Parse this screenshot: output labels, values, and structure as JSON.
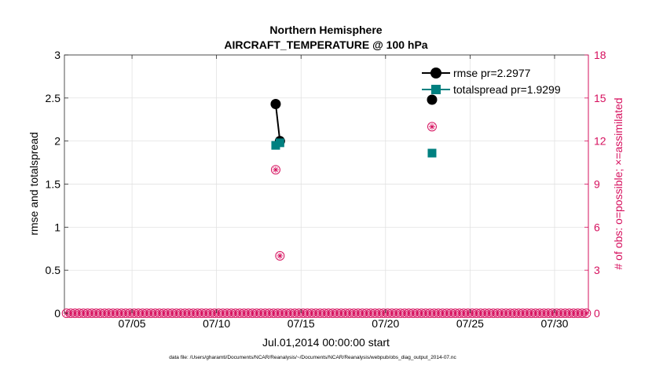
{
  "chart_data": {
    "type": "line",
    "title": "Northern Hemisphere",
    "subtitle": "AIRCRAFT_TEMPERATURE @ 100 hPa",
    "xlabel": "Jul.01,2014 00:00:00 start",
    "ylabel": "rmse and totalspread",
    "y2label": "# of obs: o=possible; ×=assimilated",
    "xlim": [
      1.0,
      32.0
    ],
    "ylim": [
      0,
      3
    ],
    "y2lim": [
      0,
      18
    ],
    "xticks": [
      {
        "value": 5,
        "label": "07/05"
      },
      {
        "value": 10,
        "label": "07/10"
      },
      {
        "value": 15,
        "label": "07/15"
      },
      {
        "value": 20,
        "label": "07/20"
      },
      {
        "value": 25,
        "label": "07/25"
      },
      {
        "value": 30,
        "label": "07/30"
      }
    ],
    "yticks": [
      "0",
      "0.5",
      "1",
      "1.5",
      "2",
      "2.5",
      "3"
    ],
    "y2ticks": [
      "0",
      "3",
      "6",
      "9",
      "12",
      "15",
      "18"
    ],
    "grid": true,
    "legend_position": "top-right",
    "series": [
      {
        "name": "rmse pr=2.2977",
        "color": "#000000",
        "marker": "circle",
        "axis": "left",
        "points": [
          [
            13.5,
            2.43
          ],
          [
            13.75,
            2.0
          ],
          [
            22.75,
            2.48
          ]
        ],
        "segments": [
          [
            0,
            1
          ]
        ]
      },
      {
        "name": "totalspread pr=1.9299",
        "color": "#008080",
        "marker": "square",
        "axis": "left",
        "points": [
          [
            13.5,
            1.95
          ],
          [
            13.75,
            1.98
          ],
          [
            22.75,
            1.86
          ]
        ],
        "segments": [
          [
            0,
            1
          ]
        ]
      }
    ],
    "obs_counts": {
      "color": "#d6105e",
      "axis": "right",
      "nonzero": [
        [
          13.5,
          10
        ],
        [
          13.75,
          4
        ],
        [
          22.75,
          13
        ]
      ],
      "zero_line": {
        "start": 1.125,
        "end": 31.875,
        "step": 0.25
      }
    }
  },
  "footer": {
    "data_file": "data file: /Users/gharamti/Documents/NCAR/Reanalysis/~/Documents/NCAR/Reanalysis/webpub/obs_diag_output_2014-07.nc"
  }
}
